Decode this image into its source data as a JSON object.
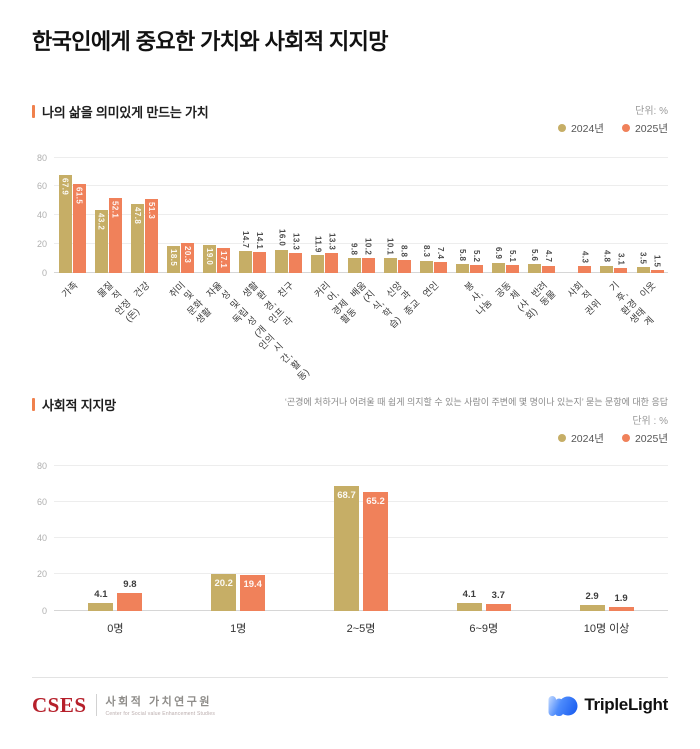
{
  "header": {
    "title": "한국인에게 중요한 가치와 사회적 지지망"
  },
  "colors": {
    "y2024": "#c6ae66",
    "y2025": "#f0815a",
    "accent": "#f0814d",
    "cses_red": "#b6202b",
    "triplelight_blue_light": "#cfe2ff",
    "triplelight_blue_dark": "#1b5ef0"
  },
  "legend": {
    "items": [
      {
        "label": "2024년",
        "color_key": "y2024"
      },
      {
        "label": "2025년",
        "color_key": "y2025"
      }
    ]
  },
  "chart_data": [
    {
      "type": "bar",
      "section_title": "나의 삶을 의미있게 만드는 가치",
      "unit_label": "단위: %",
      "categories": [
        "가족",
        "물질적 안정 (돈)",
        "건강",
        "취미 및 문화생활",
        "자율성 및 독립성\n(개인의 시간, 활동)",
        "생활환경, 인프라",
        "친구",
        "커리어, 경제활동",
        "배움(지식, 학습)",
        "신앙과 종교",
        "연인",
        "봉사, 나눔",
        "공동체(사회)",
        "반려동물",
        "사회적 권위",
        "기후, 환경 생태계",
        "이웃"
      ],
      "series": [
        {
          "name": "2024년",
          "values": [
            67.9,
            43.2,
            47.8,
            18.5,
            19.0,
            14.7,
            16.0,
            11.9,
            9.8,
            10.1,
            8.3,
            5.8,
            6.9,
            5.6,
            null,
            4.8,
            3.5
          ]
        },
        {
          "name": "2025년",
          "values": [
            61.5,
            52.1,
            51.3,
            20.3,
            17.1,
            14.1,
            13.3,
            13.3,
            10.2,
            8.8,
            7.4,
            5.2,
            5.1,
            4.7,
            4.3,
            3.1,
            1.5
          ]
        }
      ],
      "yticks": [
        80,
        60,
        40,
        20,
        0
      ],
      "ylim": [
        0,
        80
      ],
      "grid": true,
      "legend_position": "top-right",
      "value_label_style": "rotated"
    },
    {
      "type": "bar",
      "section_title": "사회적 지지망",
      "subtitle": "‘곤경에 처하거나 어려울 때 쉽게 의지할 수 있는 사람이 주변에 몇 명이나 있는지’ 묻는 문항에 대한 응답",
      "unit_label": "단위 : %",
      "categories": [
        "0명",
        "1명",
        "2~5명",
        "6~9명",
        "10명 이상"
      ],
      "series": [
        {
          "name": "2024년",
          "values": [
            4.1,
            20.2,
            68.7,
            4.1,
            2.9
          ]
        },
        {
          "name": "2025년",
          "values": [
            9.8,
            19.4,
            65.2,
            3.7,
            1.9
          ]
        }
      ],
      "yticks": [
        80,
        60,
        40,
        20,
        0
      ],
      "ylim": [
        0,
        80
      ],
      "grid": true,
      "legend_position": "top-right",
      "value_label_style": "horizontal"
    }
  ],
  "footer": {
    "cses_logo": "CSES",
    "cses_name": "사회적 가치연구원",
    "cses_subtitle": "Center for Social value Enhancement Studies",
    "partner_logo": "TripleLight"
  }
}
